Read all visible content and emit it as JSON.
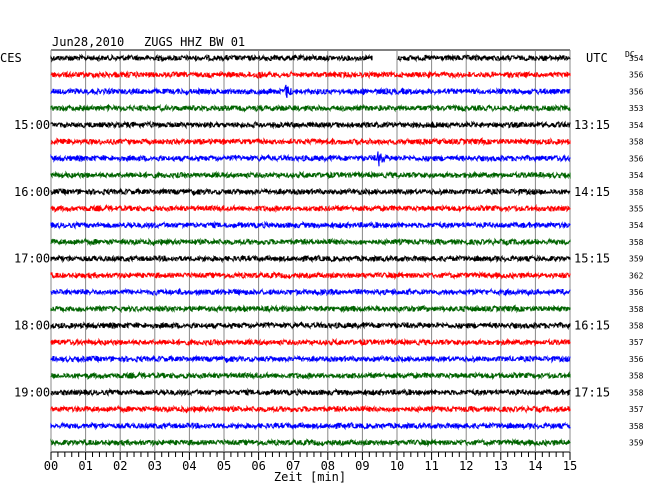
{
  "header": {
    "date": "Jun28,2010",
    "station": "ZUGS HHZ BW 01",
    "left_zone": "CES",
    "right_zone": "UTC",
    "dc_label": "DC"
  },
  "chart_data": {
    "type": "line",
    "title": "Jun28,2010   ZUGS HHZ BW 01",
    "xlabel": "Zeit [min]",
    "x_ticks": [
      "00",
      "01",
      "02",
      "03",
      "04",
      "05",
      "06",
      "07",
      "08",
      "09",
      "10",
      "11",
      "12",
      "13",
      "14",
      "15"
    ],
    "xlim": [
      0,
      15
    ],
    "grid": true,
    "trace_colors": [
      "#000000",
      "#ff0000",
      "#0000ff",
      "#006400"
    ],
    "left_hour_labels": [
      {
        "trace": 4,
        "label": "15:00"
      },
      {
        "trace": 8,
        "label": "16:00"
      },
      {
        "trace": 12,
        "label": "17:00"
      },
      {
        "trace": 16,
        "label": "18:00"
      },
      {
        "trace": 20,
        "label": "19:00"
      }
    ],
    "right_utc_labels": [
      {
        "trace": 4,
        "label": "13:15"
      },
      {
        "trace": 8,
        "label": "14:15"
      },
      {
        "trace": 12,
        "label": "15:15"
      },
      {
        "trace": 16,
        "label": "16:15"
      },
      {
        "trace": 20,
        "label": "17:15"
      }
    ],
    "dc_offsets": [
      354,
      356,
      356,
      353,
      354,
      358,
      356,
      354,
      358,
      355,
      354,
      358,
      359,
      362,
      356,
      358,
      358,
      357,
      356,
      358,
      358,
      357,
      358,
      359
    ],
    "events": [
      {
        "trace": 1,
        "minute": 6.0,
        "strength": "moderate"
      },
      {
        "trace": 2,
        "minute": 6.8,
        "strength": "strong"
      },
      {
        "trace": 6,
        "minute": 9.5,
        "strength": "strong"
      }
    ],
    "gaps": [
      {
        "trace": 0,
        "start_minute": 9.3,
        "end_minute": 10.0
      }
    ]
  }
}
